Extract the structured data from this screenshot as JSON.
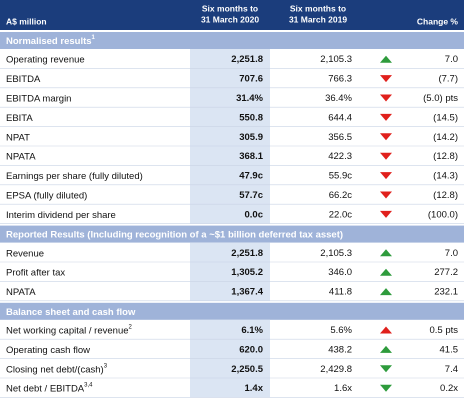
{
  "header": {
    "label": "A$ million",
    "col_2020": [
      "Six months to",
      "31 March 2020"
    ],
    "col_2019": [
      "Six months to",
      "31 March 2019"
    ],
    "change": "Change %"
  },
  "sections": [
    {
      "title": "Normalised results",
      "note": "1",
      "rows": [
        {
          "label": "Operating revenue",
          "v2020": "2,251.8",
          "v2019": "2,105.3",
          "change": "7.0",
          "arrow": "up",
          "arrow_color": "#2e9b3c"
        },
        {
          "label": "EBITDA",
          "v2020": "707.6",
          "v2019": "766.3",
          "change": "(7.7)",
          "arrow": "down",
          "arrow_color": "#e0201c"
        },
        {
          "label": "EBITDA margin",
          "v2020": "31.4%",
          "v2019": "36.4%",
          "change": "(5.0) pts",
          "arrow": "down",
          "arrow_color": "#e0201c"
        },
        {
          "label": "EBITA",
          "v2020": "550.8",
          "v2019": "644.4",
          "change": "(14.5)",
          "arrow": "down",
          "arrow_color": "#e0201c"
        },
        {
          "label": "NPAT",
          "v2020": "305.9",
          "v2019": "356.5",
          "change": "(14.2)",
          "arrow": "down",
          "arrow_color": "#e0201c"
        },
        {
          "label": "NPATA",
          "v2020": "368.1",
          "v2019": "422.3",
          "change": "(12.8)",
          "arrow": "down",
          "arrow_color": "#e0201c"
        },
        {
          "label": "Earnings per share (fully diluted)",
          "v2020": "47.9c",
          "v2019": "55.9c",
          "change": "(14.3)",
          "arrow": "down",
          "arrow_color": "#e0201c"
        },
        {
          "label": "EPSA (fully diluted)",
          "v2020": "57.7c",
          "v2019": "66.2c",
          "change": "(12.8)",
          "arrow": "down",
          "arrow_color": "#e0201c"
        },
        {
          "label": "Interim dividend per share",
          "v2020": "0.0c",
          "v2019": "22.0c",
          "change": "(100.0)",
          "arrow": "down",
          "arrow_color": "#e0201c"
        }
      ]
    },
    {
      "title": "Reported Results (Including recognition of a ~$1 billion deferred tax asset)",
      "rows": [
        {
          "label": "Revenue",
          "v2020": "2,251.8",
          "v2019": "2,105.3",
          "change": "7.0",
          "arrow": "up",
          "arrow_color": "#2e9b3c"
        },
        {
          "label": "Profit after tax",
          "v2020": "1,305.2",
          "v2019": "346.0",
          "change": "277.2",
          "arrow": "up",
          "arrow_color": "#2e9b3c"
        },
        {
          "label": "NPATA",
          "v2020": "1,367.4",
          "v2019": "411.8",
          "change": "232.1",
          "arrow": "up",
          "arrow_color": "#2e9b3c"
        }
      ]
    },
    {
      "title": "Balance sheet and cash flow",
      "rows": [
        {
          "label": "Net working capital / revenue",
          "note": "2",
          "v2020": "6.1%",
          "v2019": "5.6%",
          "change": "0.5 pts",
          "arrow": "up",
          "arrow_color": "#e0201c"
        },
        {
          "label": "Operating cash flow",
          "v2020": "620.0",
          "v2019": "438.2",
          "change": "41.5",
          "arrow": "up",
          "arrow_color": "#2e9b3c"
        },
        {
          "label": "Closing net debt/(cash)",
          "note": "3",
          "v2020": "2,250.5",
          "v2019": "2,429.8",
          "change": "7.4",
          "arrow": "down",
          "arrow_color": "#2e9b3c"
        },
        {
          "label": "Net debt / EBITDA",
          "note": "3,4",
          "v2020": "1.4x",
          "v2019": "1.6x",
          "change": "0.2x",
          "arrow": "down",
          "arrow_color": "#2e9b3c"
        }
      ]
    }
  ]
}
